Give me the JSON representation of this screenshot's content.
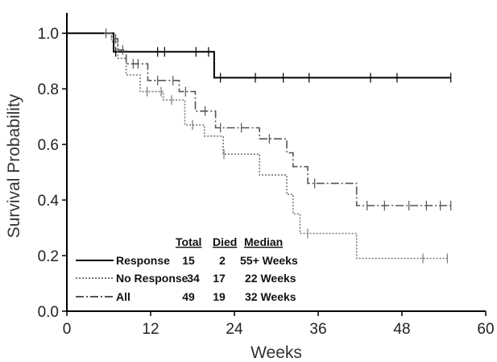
{
  "chart_data": {
    "type": "line",
    "title": "",
    "xlabel": "Weeks",
    "ylabel": "Survival Probability",
    "xlim": [
      0,
      60
    ],
    "ylim": [
      0,
      1.05
    ],
    "x_ticks": [
      "0",
      "12",
      "24",
      "36",
      "48",
      "60"
    ],
    "y_ticks": [
      "0.0",
      "0.2",
      "0.4",
      "0.6",
      "0.8",
      "1.0"
    ],
    "grid": false,
    "legend_position": "bottom-left",
    "legend_headers": [
      "Total",
      "Died",
      "Median"
    ],
    "series": [
      {
        "name": "Response",
        "total": "15",
        "died": "2",
        "median": "55+ Weeks",
        "color": "#000000",
        "style": "solid",
        "x": [
          0,
          6.7,
          6.7,
          21.1,
          21.1,
          55
        ],
        "y": [
          1.0,
          1.0,
          0.933,
          0.933,
          0.84,
          0.84
        ],
        "censor_x": [
          7,
          13,
          14,
          18.5,
          20.3,
          22,
          27,
          31,
          34.7,
          43.5,
          47.3,
          55
        ],
        "censor_y": [
          0.933,
          0.933,
          0.933,
          0.933,
          0.933,
          0.84,
          0.84,
          0.84,
          0.84,
          0.84,
          0.84,
          0.84
        ]
      },
      {
        "name": "No Response",
        "total": "34",
        "died": "17",
        "median": "22 Weeks",
        "color": "#777777",
        "style": "dotted",
        "x": [
          5.3,
          6.4,
          6.4,
          7.3,
          7.3,
          8.5,
          8.5,
          10.5,
          10.5,
          13.8,
          13.8,
          16.9,
          16.9,
          19.7,
          19.7,
          22.4,
          22.4,
          27.6,
          27.6,
          31.5,
          31.5,
          32.4,
          32.4,
          33.4,
          33.4,
          35.3,
          35.3,
          41.5,
          41.5,
          54.5
        ],
        "y": [
          1.0,
          1.0,
          0.97,
          0.97,
          0.91,
          0.91,
          0.85,
          0.85,
          0.79,
          0.79,
          0.76,
          0.76,
          0.67,
          0.67,
          0.63,
          0.63,
          0.565,
          0.565,
          0.49,
          0.49,
          0.42,
          0.42,
          0.35,
          0.35,
          0.28,
          0.28,
          0.28,
          0.28,
          0.19,
          0.19
        ],
        "censor_x": [
          11.5,
          13.5,
          15,
          18,
          22.5,
          34.5,
          51,
          54.5
        ],
        "censor_y": [
          0.79,
          0.79,
          0.76,
          0.67,
          0.565,
          0.28,
          0.19,
          0.19
        ]
      },
      {
        "name": "All",
        "total": "49",
        "died": "19",
        "median": "32 Weeks",
        "color": "#555555",
        "style": "dashed",
        "x": [
          5.3,
          6.4,
          6.4,
          7.3,
          7.3,
          8.5,
          8.5,
          11.6,
          11.6,
          16.1,
          16.1,
          18.4,
          18.4,
          21.3,
          21.3,
          24.0,
          24.0,
          27.6,
          27.6,
          31.5,
          31.5,
          32.4,
          32.4,
          34.5,
          34.5,
          41.5,
          41.5,
          55
        ],
        "y": [
          1.0,
          1.0,
          0.98,
          0.98,
          0.94,
          0.94,
          0.89,
          0.89,
          0.83,
          0.83,
          0.79,
          0.79,
          0.72,
          0.72,
          0.66,
          0.66,
          0.66,
          0.66,
          0.62,
          0.62,
          0.57,
          0.57,
          0.52,
          0.52,
          0.46,
          0.46,
          0.38,
          0.38
        ],
        "censor_x": [
          5.6,
          7.0,
          8.0,
          9.5,
          10.2,
          13.0,
          15.2,
          17.0,
          19.8,
          22.0,
          25.0,
          29.0,
          35.5,
          43.0,
          45.5,
          49.0,
          51.5,
          53.5,
          55
        ],
        "censor_y": [
          1.0,
          0.98,
          0.94,
          0.89,
          0.89,
          0.83,
          0.83,
          0.79,
          0.72,
          0.66,
          0.66,
          0.62,
          0.46,
          0.38,
          0.38,
          0.38,
          0.38,
          0.38,
          0.38
        ]
      }
    ]
  }
}
